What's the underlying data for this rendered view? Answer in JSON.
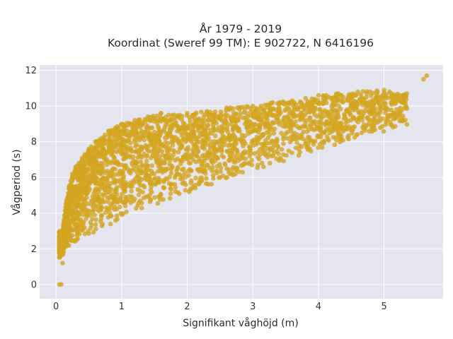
{
  "chart_data": {
    "type": "scatter",
    "title_line1": "År 1979 - 2019",
    "title_line2": "Koordinat (Sweref 99 TM): E 902722, N 6416196",
    "xlabel": "Signifikant våghöjd (m)",
    "ylabel": "Vågperiod (s)",
    "xlim": [
      -0.25,
      5.9
    ],
    "ylim": [
      -0.8,
      12.3
    ],
    "xticks": [
      0,
      1,
      2,
      3,
      4,
      5
    ],
    "yticks": [
      0,
      2,
      4,
      6,
      8,
      10,
      12
    ],
    "grid": true,
    "background_color": "#e5e5ef",
    "marker_color": "#d4a520",
    "marker_opacity": 0.78,
    "series": [
      {
        "points_note": "dense cloud of hourly observations; representative envelope points below",
        "x": [
          0.05,
          0.08,
          0.1,
          0.1,
          0.15,
          0.2,
          0.25,
          0.3,
          0.35,
          0.4,
          0.5,
          0.6,
          0.7,
          0.8,
          1.0,
          1.2,
          1.4,
          1.6,
          1.8,
          2.0,
          2.3,
          2.6,
          3.0,
          3.3,
          3.6,
          4.0,
          4.3,
          4.6,
          5.0,
          5.3,
          5.6,
          5.65
        ],
        "y": [
          0.0,
          0.0,
          1.2,
          3.0,
          4.5,
          5.5,
          6.2,
          6.6,
          6.8,
          7.1,
          7.6,
          8.0,
          8.2,
          8.6,
          9.0,
          9.2,
          9.4,
          9.6,
          9.5,
          9.6,
          9.7,
          9.9,
          10.0,
          10.2,
          10.3,
          10.6,
          10.7,
          10.8,
          10.9,
          10.6,
          11.5,
          11.7
        ]
      }
    ]
  }
}
